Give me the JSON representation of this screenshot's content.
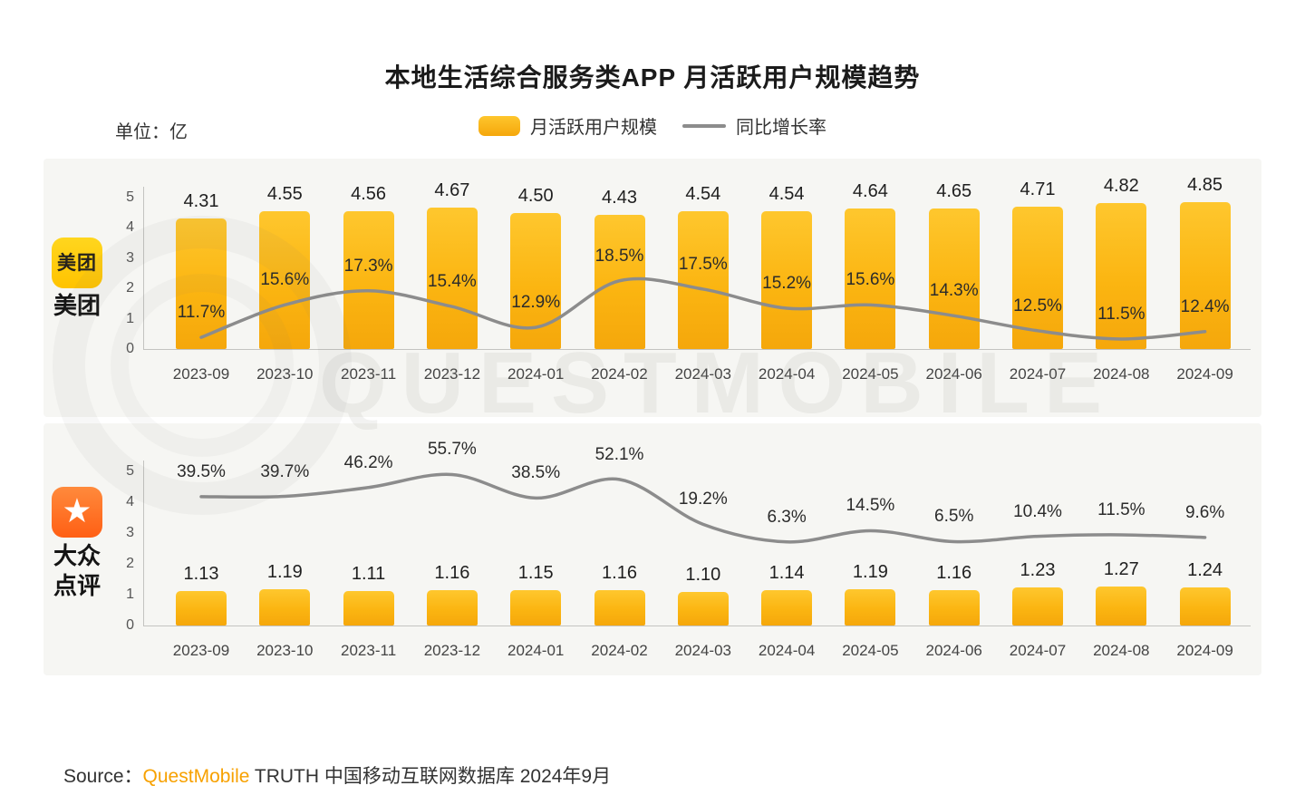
{
  "header": {
    "title": "本地生活综合服务类APP 月活跃用户规模趋势",
    "unit_label": "单位：亿"
  },
  "legend": {
    "bar_label": "月活跃用户规模",
    "line_label": "同比增长率"
  },
  "watermark": "QUESTMOBILE",
  "footer": {
    "source_prefix": "Source：",
    "source_brand": "QuestMobile",
    "source_suffix": " TRUTH 中国移动互联网数据库 2024年9月"
  },
  "colors": {
    "bar_top": "#FEC62D",
    "bar_bottom": "#F5A70B",
    "line": "#8C8C8C",
    "panel_bg": "#F6F6F3",
    "brand_orange": "#F7A100"
  },
  "chart_data": [
    {
      "type": "bar",
      "app": "美团",
      "icon": "meituan-logo",
      "title": "美团 月活跃用户规模与同比增长率",
      "categories": [
        "2023-09",
        "2023-10",
        "2023-11",
        "2023-12",
        "2024-01",
        "2024-02",
        "2024-03",
        "2024-04",
        "2024-05",
        "2024-06",
        "2024-07",
        "2024-08",
        "2024-09"
      ],
      "series": [
        {
          "name": "月活跃用户规模",
          "type": "bar",
          "unit": "亿",
          "values": [
            "4.31",
            "4.55",
            "4.56",
            "4.67",
            "4.50",
            "4.43",
            "4.54",
            "4.54",
            "4.64",
            "4.65",
            "4.71",
            "4.82",
            "4.85"
          ]
        },
        {
          "name": "同比增长率",
          "type": "line",
          "unit": "%",
          "values": [
            11.7,
            15.6,
            17.3,
            15.4,
            12.9,
            18.5,
            17.5,
            15.2,
            15.6,
            14.3,
            12.5,
            11.5,
            12.4
          ]
        }
      ],
      "ylim": [
        0,
        5
      ],
      "yticks": [
        0,
        1,
        2,
        3,
        4,
        5
      ],
      "line_axis_ylim": [
        10.3,
        28.5
      ],
      "grid": false,
      "legend_position": "top-center"
    },
    {
      "type": "bar",
      "app": "大众点评",
      "icon": "dianping-logo",
      "title": "大众点评 月活跃用户规模与同比增长率",
      "categories": [
        "2023-09",
        "2023-10",
        "2023-11",
        "2023-12",
        "2024-01",
        "2024-02",
        "2024-03",
        "2024-04",
        "2024-05",
        "2024-06",
        "2024-07",
        "2024-08",
        "2024-09"
      ],
      "series": [
        {
          "name": "月活跃用户规模",
          "type": "bar",
          "unit": "亿",
          "values": [
            "1.13",
            "1.19",
            "1.11",
            "1.16",
            "1.15",
            "1.16",
            "1.10",
            "1.14",
            "1.19",
            "1.16",
            "1.23",
            "1.27",
            "1.24"
          ]
        },
        {
          "name": "同比增长率",
          "type": "line",
          "unit": "%",
          "values": [
            39.5,
            39.7,
            46.2,
            55.7,
            38.5,
            52.1,
            19.2,
            6.3,
            14.5,
            6.5,
            10.4,
            11.5,
            9.6
          ]
        }
      ],
      "ylim": [
        0,
        5
      ],
      "yticks": [
        0,
        1,
        2,
        3,
        4,
        5
      ],
      "line_axis_ylim": [
        -55,
        58
      ],
      "grid": false,
      "legend_position": "top-center"
    }
  ]
}
